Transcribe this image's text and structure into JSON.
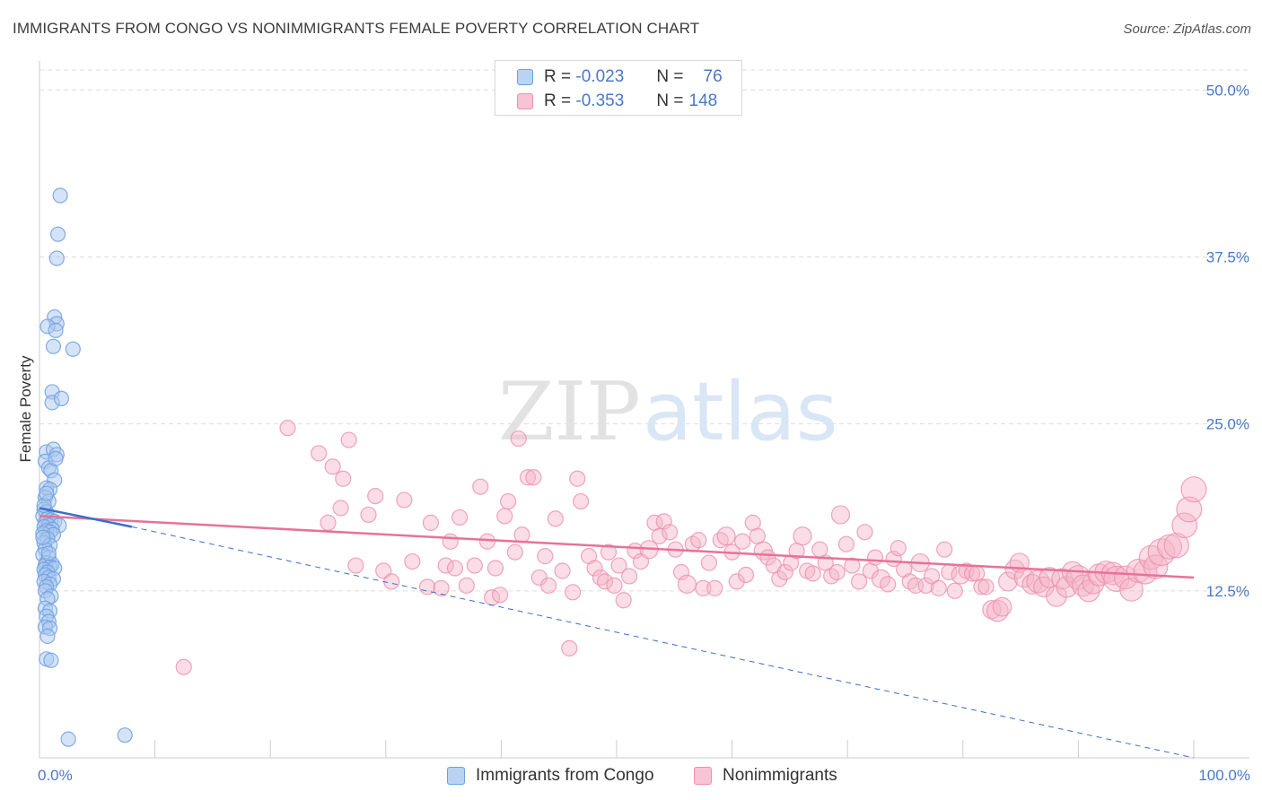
{
  "header": {
    "title": "IMMIGRANTS FROM CONGO VS NONIMMIGRANTS FEMALE POVERTY CORRELATION CHART",
    "source": "Source: ZipAtlas.com"
  },
  "legend_top": {
    "rows": [
      {
        "r_label": "R =",
        "r_value": "-0.023",
        "n_label": "N =",
        "n_value": "76"
      },
      {
        "r_label": "R =",
        "r_value": "-0.353",
        "n_label": "N =",
        "n_value": "148"
      }
    ]
  },
  "watermark": {
    "zip": "ZIP",
    "atlas": "atlas"
  },
  "colors": {
    "congo_fill": "#a9c8f0",
    "congo_stroke": "#6f9fe0",
    "congo_line": "#3a6fc8",
    "non_fill": "#f5b3c8",
    "non_stroke": "#ec8fae",
    "non_line": "#e8719a",
    "grid": "#dddddd",
    "tick_text": "#4a78c8"
  },
  "chart_data": {
    "type": "scatter",
    "title": "IMMIGRANTS FROM CONGO VS NONIMMIGRANTS FEMALE POVERTY CORRELATION CHART",
    "xlabel": "",
    "ylabel": "Female Poverty",
    "xlim": [
      0,
      100
    ],
    "ylim": [
      0,
      51.5
    ],
    "x_tick_labels": [
      "0.0%",
      "100.0%"
    ],
    "y_ticks": [
      12.5,
      25.0,
      37.5,
      50.0
    ],
    "y_tick_labels": [
      "12.5%",
      "25.0%",
      "37.5%",
      "50.0%"
    ],
    "grid": true,
    "legend_position": "bottom",
    "series": [
      {
        "name": "Immigrants from Congo",
        "r": -0.023,
        "n": 76,
        "trend_solid": [
          [
            0.0,
            18.7
          ],
          [
            8.0,
            17.3
          ]
        ],
        "trend_dashed": [
          [
            8.0,
            17.3
          ],
          [
            100.0,
            0.0
          ]
        ],
        "points": [
          [
            1.8,
            42.1
          ],
          [
            1.6,
            39.2
          ],
          [
            1.5,
            37.4
          ],
          [
            1.3,
            33.0
          ],
          [
            1.5,
            32.5
          ],
          [
            0.7,
            32.3
          ],
          [
            1.4,
            32.0
          ],
          [
            1.2,
            30.8
          ],
          [
            2.9,
            30.6
          ],
          [
            1.1,
            27.4
          ],
          [
            1.1,
            26.6
          ],
          [
            1.9,
            26.9
          ],
          [
            0.6,
            22.9
          ],
          [
            1.2,
            23.1
          ],
          [
            1.5,
            22.7
          ],
          [
            0.5,
            22.2
          ],
          [
            0.8,
            21.7
          ],
          [
            1.0,
            21.5
          ],
          [
            1.3,
            20.8
          ],
          [
            0.6,
            20.2
          ],
          [
            0.9,
            20.1
          ],
          [
            0.5,
            19.5
          ],
          [
            0.8,
            19.2
          ],
          [
            0.4,
            18.6
          ],
          [
            0.6,
            18.4
          ],
          [
            0.3,
            18.1
          ],
          [
            0.7,
            17.9
          ],
          [
            1.0,
            17.8
          ],
          [
            1.3,
            17.7
          ],
          [
            0.5,
            17.6
          ],
          [
            0.8,
            17.4
          ],
          [
            1.7,
            17.4
          ],
          [
            0.4,
            17.3
          ],
          [
            1.1,
            17.1
          ],
          [
            0.6,
            17.0
          ],
          [
            0.9,
            16.9
          ],
          [
            0.3,
            16.8
          ],
          [
            1.2,
            16.7
          ],
          [
            0.7,
            16.4
          ],
          [
            0.4,
            16.1
          ],
          [
            0.9,
            15.9
          ],
          [
            0.5,
            15.6
          ],
          [
            0.3,
            15.2
          ],
          [
            0.8,
            15.0
          ],
          [
            0.6,
            14.6
          ],
          [
            1.1,
            14.5
          ],
          [
            0.5,
            14.4
          ],
          [
            0.9,
            14.3
          ],
          [
            0.4,
            14.1
          ],
          [
            1.3,
            14.2
          ],
          [
            0.7,
            13.9
          ],
          [
            0.5,
            13.7
          ],
          [
            0.8,
            13.5
          ],
          [
            1.2,
            13.4
          ],
          [
            0.4,
            13.2
          ],
          [
            0.9,
            13.0
          ],
          [
            0.6,
            12.8
          ],
          [
            0.5,
            12.5
          ],
          [
            1.0,
            12.1
          ],
          [
            0.7,
            11.9
          ],
          [
            0.5,
            11.2
          ],
          [
            0.9,
            11.0
          ],
          [
            0.6,
            10.6
          ],
          [
            0.8,
            10.2
          ],
          [
            0.5,
            9.8
          ],
          [
            0.9,
            9.7
          ],
          [
            0.7,
            9.1
          ],
          [
            0.6,
            7.4
          ],
          [
            1.0,
            7.3
          ],
          [
            2.5,
            1.4
          ],
          [
            7.4,
            1.7
          ],
          [
            0.4,
            18.9
          ],
          [
            0.6,
            19.8
          ],
          [
            1.4,
            22.4
          ],
          [
            0.3,
            16.5
          ],
          [
            0.8,
            15.3
          ]
        ]
      },
      {
        "name": "Nonimmigrants",
        "r": -0.353,
        "n": 148,
        "trend_solid": [
          [
            0.0,
            18.1
          ],
          [
            100.0,
            13.5
          ]
        ],
        "points": [
          [
            12.5,
            6.8
          ],
          [
            21.5,
            24.7
          ],
          [
            24.2,
            22.8
          ],
          [
            25.4,
            21.8
          ],
          [
            26.3,
            20.9
          ],
          [
            26.8,
            23.8
          ],
          [
            25.0,
            17.6
          ],
          [
            26.1,
            18.7
          ],
          [
            27.4,
            14.4
          ],
          [
            28.5,
            18.2
          ],
          [
            29.1,
            19.6
          ],
          [
            29.8,
            14.0
          ],
          [
            30.5,
            13.2
          ],
          [
            31.6,
            19.3
          ],
          [
            32.3,
            14.7
          ],
          [
            33.6,
            12.8
          ],
          [
            33.9,
            17.6
          ],
          [
            34.8,
            12.7
          ],
          [
            35.2,
            14.4
          ],
          [
            35.6,
            16.2
          ],
          [
            36.0,
            14.2
          ],
          [
            36.4,
            18.0
          ],
          [
            37.0,
            12.9
          ],
          [
            37.7,
            14.4
          ],
          [
            38.2,
            20.3
          ],
          [
            38.8,
            16.2
          ],
          [
            39.2,
            12.0
          ],
          [
            39.5,
            14.2
          ],
          [
            39.9,
            12.2
          ],
          [
            40.3,
            18.1
          ],
          [
            40.6,
            19.2
          ],
          [
            41.2,
            15.4
          ],
          [
            41.5,
            23.9
          ],
          [
            41.8,
            16.7
          ],
          [
            42.3,
            21.0
          ],
          [
            42.8,
            21.0
          ],
          [
            43.3,
            13.5
          ],
          [
            43.8,
            15.1
          ],
          [
            44.1,
            12.9
          ],
          [
            44.7,
            17.9
          ],
          [
            45.3,
            14.0
          ],
          [
            45.9,
            8.2
          ],
          [
            46.2,
            12.4
          ],
          [
            46.6,
            20.9
          ],
          [
            46.9,
            19.2
          ],
          [
            47.6,
            15.1
          ],
          [
            48.1,
            14.2
          ],
          [
            48.6,
            13.5
          ],
          [
            49.0,
            13.2
          ],
          [
            49.3,
            15.4
          ],
          [
            49.8,
            12.9
          ],
          [
            50.2,
            14.4
          ],
          [
            50.6,
            11.8
          ],
          [
            51.1,
            13.6
          ],
          [
            51.6,
            15.5
          ],
          [
            52.1,
            14.7
          ],
          [
            52.8,
            15.6
          ],
          [
            53.3,
            17.6
          ],
          [
            53.7,
            16.6
          ],
          [
            54.1,
            17.7
          ],
          [
            54.6,
            16.9
          ],
          [
            55.1,
            15.6
          ],
          [
            55.6,
            13.9
          ],
          [
            56.1,
            13.0
          ],
          [
            56.6,
            16.0
          ],
          [
            57.1,
            16.3
          ],
          [
            57.5,
            12.7
          ],
          [
            58.0,
            14.6
          ],
          [
            58.5,
            12.7
          ],
          [
            59.0,
            16.3
          ],
          [
            59.5,
            16.6
          ],
          [
            60.0,
            15.4
          ],
          [
            60.4,
            13.2
          ],
          [
            60.9,
            16.2
          ],
          [
            61.2,
            13.7
          ],
          [
            61.8,
            17.6
          ],
          [
            62.2,
            16.6
          ],
          [
            62.7,
            15.5
          ],
          [
            63.1,
            15.0
          ],
          [
            63.6,
            14.4
          ],
          [
            64.1,
            13.4
          ],
          [
            64.6,
            13.9
          ],
          [
            65.1,
            14.6
          ],
          [
            65.6,
            15.5
          ],
          [
            66.1,
            16.6
          ],
          [
            66.5,
            14.0
          ],
          [
            67.0,
            13.8
          ],
          [
            67.6,
            15.6
          ],
          [
            68.1,
            14.6
          ],
          [
            68.6,
            13.6
          ],
          [
            69.1,
            13.9
          ],
          [
            69.4,
            18.2
          ],
          [
            69.9,
            16.0
          ],
          [
            70.4,
            14.4
          ],
          [
            71.0,
            13.2
          ],
          [
            71.5,
            16.9
          ],
          [
            72.0,
            14.0
          ],
          [
            72.4,
            15.0
          ],
          [
            72.9,
            13.4
          ],
          [
            73.5,
            13.0
          ],
          [
            74.0,
            14.9
          ],
          [
            74.4,
            15.7
          ],
          [
            74.9,
            14.1
          ],
          [
            75.4,
            13.2
          ],
          [
            75.9,
            12.9
          ],
          [
            76.3,
            14.6
          ],
          [
            76.8,
            12.9
          ],
          [
            77.3,
            13.6
          ],
          [
            77.9,
            12.7
          ],
          [
            78.4,
            15.6
          ],
          [
            78.8,
            13.9
          ],
          [
            79.3,
            12.5
          ],
          [
            79.8,
            13.7
          ],
          [
            80.3,
            14.0
          ],
          [
            80.8,
            13.8
          ],
          [
            81.2,
            13.8
          ],
          [
            81.6,
            12.8
          ],
          [
            82.0,
            12.8
          ],
          [
            82.5,
            11.1
          ],
          [
            83.0,
            11.0
          ],
          [
            83.4,
            11.3
          ],
          [
            83.9,
            13.2
          ],
          [
            84.5,
            14.1
          ],
          [
            84.9,
            14.6
          ],
          [
            85.3,
            13.5
          ],
          [
            86.0,
            13.0
          ],
          [
            86.5,
            13.2
          ],
          [
            87.0,
            12.8
          ],
          [
            87.5,
            13.5
          ],
          [
            88.1,
            12.1
          ],
          [
            88.6,
            13.4
          ],
          [
            89.0,
            12.8
          ],
          [
            89.5,
            13.9
          ],
          [
            90.0,
            13.5
          ],
          [
            90.4,
            12.9
          ],
          [
            90.9,
            12.5
          ],
          [
            91.3,
            13.1
          ],
          [
            91.8,
            13.7
          ],
          [
            92.4,
            13.9
          ],
          [
            93.0,
            13.8
          ],
          [
            93.3,
            13.4
          ],
          [
            94.1,
            13.5
          ],
          [
            94.6,
            12.6
          ],
          [
            95.2,
            14.0
          ],
          [
            95.8,
            13.9
          ],
          [
            96.3,
            15.0
          ],
          [
            96.7,
            14.3
          ],
          [
            97.2,
            15.4
          ],
          [
            97.9,
            15.8
          ],
          [
            98.5,
            15.9
          ],
          [
            99.2,
            17.4
          ],
          [
            99.6,
            18.6
          ],
          [
            100.0,
            20.1
          ]
        ]
      }
    ]
  },
  "legend_bottom": {
    "items": [
      "Immigrants from Congo",
      "Nonimmigrants"
    ]
  }
}
